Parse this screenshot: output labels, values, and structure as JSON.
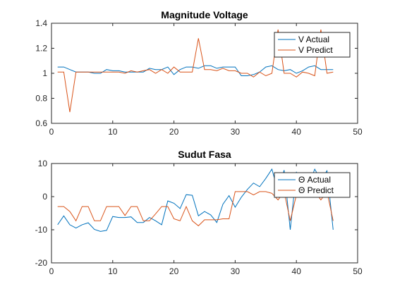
{
  "colors": {
    "actual": "#0072BD",
    "predict": "#D95319"
  },
  "chart_data": [
    {
      "type": "line",
      "title": "Magnitude Voltage",
      "xlim": [
        0,
        50
      ],
      "ylim": [
        0.6,
        1.4
      ],
      "x_ticks": [
        "0",
        "10",
        "20",
        "30",
        "40",
        "50"
      ],
      "y_ticks": [
        "0.6",
        "0.8",
        "1",
        "1.2",
        "1.4"
      ],
      "legend_position": "top-right",
      "grid": false,
      "x": [
        1,
        2,
        3,
        4,
        5,
        6,
        7,
        8,
        9,
        10,
        11,
        12,
        13,
        14,
        15,
        16,
        17,
        18,
        19,
        20,
        21,
        22,
        23,
        24,
        25,
        26,
        27,
        28,
        29,
        30,
        31,
        32,
        33,
        34,
        35,
        36,
        37,
        38,
        39,
        40,
        41,
        42,
        43,
        44,
        45,
        46
      ],
      "series": [
        {
          "name": "V Actual",
          "color": "actual",
          "values": [
            1.05,
            1.05,
            1.03,
            1.01,
            1.01,
            1.01,
            1.0,
            1.0,
            1.03,
            1.02,
            1.02,
            1.01,
            1.01,
            1.01,
            1.01,
            1.04,
            1.03,
            1.03,
            1.05,
            0.99,
            1.03,
            1.05,
            1.05,
            1.04,
            1.06,
            1.06,
            1.04,
            1.05,
            1.05,
            1.05,
            0.98,
            0.98,
            0.99,
            1.01,
            1.05,
            1.06,
            1.03,
            1.02,
            1.03,
            1.0,
            1.02,
            1.05,
            1.06,
            1.03,
            1.03,
            1.03
          ]
        },
        {
          "name": "V Predict",
          "color": "predict",
          "values": [
            1.01,
            1.01,
            0.69,
            1.01,
            1.01,
            1.01,
            1.01,
            1.01,
            1.01,
            1.01,
            1.01,
            1.0,
            1.02,
            1.01,
            1.02,
            1.03,
            1.0,
            1.03,
            1.0,
            1.05,
            1.01,
            1.01,
            1.01,
            1.28,
            1.03,
            1.03,
            1.02,
            1.04,
            1.02,
            1.02,
            1.0,
            1.0,
            0.97,
            1.01,
            0.98,
            1.0,
            1.35,
            1.0,
            1.0,
            0.97,
            1.01,
            1.0,
            0.98,
            1.35,
            1.0,
            1.01
          ]
        }
      ]
    },
    {
      "type": "line",
      "title": "Sudut Fasa",
      "xlim": [
        0,
        50
      ],
      "ylim": [
        -20,
        10
      ],
      "x_ticks": [
        "0",
        "10",
        "20",
        "30",
        "40",
        "50"
      ],
      "y_ticks": [
        "-20",
        "-10",
        "0",
        "10"
      ],
      "legend_position": "top-right",
      "grid": false,
      "x": [
        1,
        2,
        3,
        4,
        5,
        6,
        7,
        8,
        9,
        10,
        11,
        12,
        13,
        14,
        15,
        16,
        17,
        18,
        19,
        20,
        21,
        22,
        23,
        24,
        25,
        26,
        27,
        28,
        29,
        30,
        31,
        32,
        33,
        34,
        35,
        36,
        37,
        38,
        39,
        40,
        41,
        42,
        43,
        44,
        45,
        46
      ],
      "series": [
        {
          "name": "Θ Actual",
          "color": "actual",
          "values": [
            -8.5,
            -5.8,
            -8.5,
            -9.5,
            -8.5,
            -7.9,
            -9.9,
            -10.5,
            -10.2,
            -6.0,
            -6.3,
            -6.3,
            -6.1,
            -7.8,
            -7.8,
            -6.3,
            -7.3,
            -8.5,
            -1.3,
            -2.0,
            -3.6,
            0.6,
            0.4,
            -5.8,
            -4.5,
            -5.5,
            -7.8,
            -2.3,
            0.3,
            -3.2,
            -0.2,
            2.2,
            4.1,
            3.0,
            5.5,
            8.3,
            1.5,
            8.0,
            -10.0,
            7.5,
            0.5,
            3.5,
            8.3,
            5.0,
            7.8,
            -10.0
          ]
        },
        {
          "name": "Θ Predict",
          "color": "predict",
          "values": [
            -3.0,
            -3.0,
            -4.5,
            -7.3,
            -3.0,
            -3.0,
            -7.3,
            -7.3,
            -3.0,
            -3.0,
            -3.0,
            -5.7,
            -3.0,
            -3.0,
            -7.3,
            -7.3,
            -5.2,
            -3.0,
            -3.0,
            -6.7,
            -7.3,
            -3.0,
            -7.3,
            -8.8,
            -7.0,
            -7.0,
            -7.0,
            -6.7,
            -6.7,
            1.5,
            1.5,
            1.5,
            0.5,
            1.5,
            1.5,
            1.0,
            -1.0,
            1.5,
            -7.3,
            0.5,
            1.5,
            1.5,
            1.5,
            -1.0,
            1.5,
            -7.3
          ]
        }
      ]
    }
  ]
}
